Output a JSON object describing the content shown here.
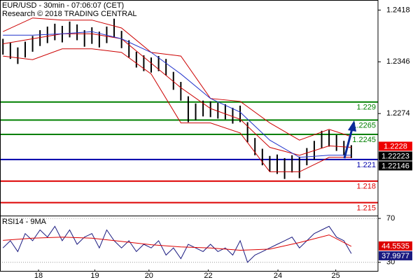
{
  "chart_data": [
    {
      "type": "hilo",
      "title": "EUR/USD - 30min - 07:06:07 (CET)",
      "subtitle": "Research © 2018 TRADING CENTRAL",
      "xlim": [
        -0.4,
        50.6
      ],
      "ylim": [
        1.2132,
        1.2432
      ],
      "yticks": [
        1.2418,
        1.2346,
        1.2274
      ],
      "bar_color": "#000000",
      "high": [
        1.2378,
        1.2373,
        1.2366,
        1.2374,
        1.2382,
        1.239,
        1.2395,
        1.2399,
        1.2396,
        1.2402,
        1.2398,
        1.239,
        1.2394,
        1.2388,
        1.2395,
        1.2406,
        1.2389,
        1.2376,
        1.236,
        1.2355,
        1.2352,
        1.2354,
        1.235,
        1.2332,
        1.2318,
        1.2298,
        1.2288,
        1.2292,
        1.2291,
        1.2289,
        1.2287,
        1.2282,
        1.2285,
        1.2262,
        1.224,
        1.2225,
        1.2215,
        1.2217,
        1.2212,
        1.2216,
        1.2214,
        1.2226,
        1.2236,
        1.225,
        1.2251,
        1.2244,
        1.2236,
        1.223
      ],
      "low": [
        1.2356,
        1.235,
        1.2343,
        1.2352,
        1.236,
        1.2368,
        1.2372,
        1.2376,
        1.2373,
        1.238,
        1.2376,
        1.2367,
        1.2371,
        1.2366,
        1.2372,
        1.238,
        1.2365,
        1.2352,
        1.2338,
        1.2333,
        1.2331,
        1.2333,
        1.2327,
        1.2307,
        1.2292,
        1.2262,
        1.2265,
        1.227,
        1.2269,
        1.2267,
        1.2266,
        1.226,
        1.2262,
        1.2234,
        1.2216,
        1.2202,
        1.2193,
        1.219,
        1.2183,
        1.2192,
        1.2184,
        1.2202,
        1.221,
        1.2226,
        1.2228,
        1.2222,
        1.2216,
        1.2212
      ],
      "lines": [
        {
          "color": "#cc0000",
          "x": [
            0,
            4,
            8,
            12,
            16,
            20,
            24,
            28,
            32,
            36,
            40,
            44,
            47
          ],
          "values": [
            1.2388,
            1.2407,
            1.2404,
            1.2404,
            1.2393,
            1.2359,
            1.2354,
            1.2295,
            1.2291,
            1.2261,
            1.2237,
            1.2252,
            1.2242
          ]
        },
        {
          "color": "#cc0000",
          "x": [
            0,
            4,
            8,
            12,
            16,
            20,
            24,
            28,
            32,
            36,
            40,
            44,
            47
          ],
          "values": [
            1.2354,
            1.2349,
            1.2364,
            1.2364,
            1.2359,
            1.2329,
            1.2261,
            1.2261,
            1.2247,
            1.2193,
            1.2193,
            1.2213,
            1.2213
          ]
        },
        {
          "color": "#cc0000",
          "x": [
            0,
            4,
            8,
            12,
            16,
            20,
            24,
            28,
            32,
            36,
            40,
            44,
            47
          ],
          "values": [
            1.2371,
            1.2378,
            1.2385,
            1.2385,
            1.2378,
            1.2344,
            1.231,
            1.2281,
            1.2266,
            1.2227,
            1.2216,
            1.2229,
            1.2227
          ]
        },
        {
          "color": "#2233cc",
          "x": [
            0,
            4,
            8,
            12,
            16,
            20,
            24,
            28,
            32,
            36,
            40,
            44,
            47
          ],
          "values": [
            1.2383,
            1.2383,
            1.2385,
            1.2388,
            1.2378,
            1.2359,
            1.2329,
            1.2295,
            1.2276,
            1.2237,
            1.2213,
            1.2216,
            1.2216
          ]
        }
      ],
      "levels": [
        {
          "value": 1.229,
          "color": "#008000"
        },
        {
          "value": 1.2265,
          "color": "#008000"
        },
        {
          "value": 1.2245,
          "color": "#008000"
        },
        {
          "value": 1.221,
          "color": "#0000aa"
        },
        {
          "value": 1.218,
          "color": "#dd0000"
        },
        {
          "value": 1.215,
          "color": "#dd0000"
        }
      ],
      "price_tags": [
        {
          "value": 1.2228,
          "color": "#ee0000"
        },
        {
          "value": 1.22223,
          "color": "#000000"
        },
        {
          "value": 1.22146,
          "color": "#000000"
        }
      ]
    },
    {
      "type": "line",
      "title": "RSI14 - 9MA",
      "xlim": [
        -0.4,
        50.6
      ],
      "ylim": [
        21.5,
        72.6
      ],
      "yticks": [
        70,
        30
      ],
      "grid": true,
      "xticks": [
        {
          "value": 4.8,
          "label": "18"
        },
        {
          "value": 12.4,
          "label": "19"
        },
        {
          "value": 19.7,
          "label": "20"
        },
        {
          "value": 27.7,
          "label": "22"
        },
        {
          "value": 37.1,
          "label": "24"
        },
        {
          "value": 44.9,
          "label": "25"
        }
      ],
      "series": [
        {
          "color": "#1a1a80",
          "values": [
            43.1,
            49.7,
            39.8,
            56.2,
            49.7,
            59.5,
            53.0,
            62.8,
            49.7,
            59.5,
            46.4,
            53.0,
            56.2,
            43.1,
            59.5,
            49.7,
            43.1,
            49.7,
            39.8,
            46.4,
            43.1,
            49.7,
            36.6,
            43.1,
            33.3,
            46.4,
            43.1,
            39.8,
            46.4,
            39.8,
            43.1,
            36.6,
            49.7,
            30.0,
            36.6,
            39.8,
            43.1,
            46.4,
            49.7,
            53.0,
            43.1,
            49.7,
            56.2,
            59.5,
            62.8,
            53.0,
            49.7,
            37.9977
          ]
        },
        {
          "color": "#dd0000",
          "x": [
            0,
            4,
            8,
            12,
            16,
            20,
            24,
            28,
            32,
            36,
            40,
            44,
            47
          ],
          "values": [
            50,
            52,
            53,
            52,
            49,
            46,
            44,
            43,
            41,
            42,
            48,
            55,
            44.5535
          ]
        }
      ]
    }
  ]
}
